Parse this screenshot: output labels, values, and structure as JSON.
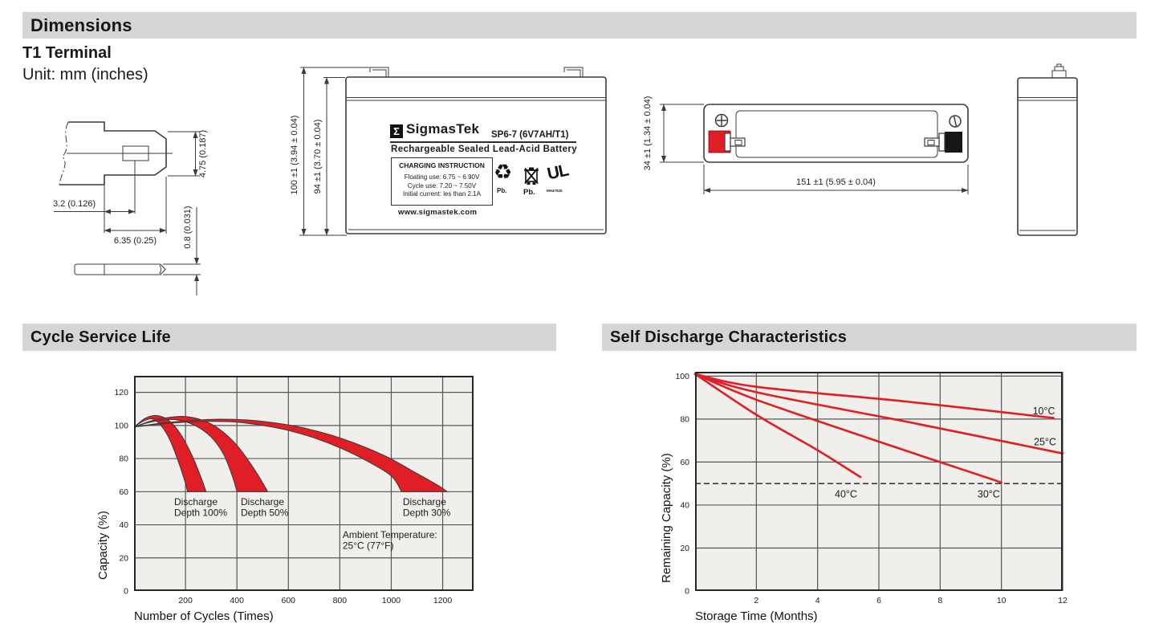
{
  "page": {
    "header": "Dimensions",
    "subheader": "T1 Terminal",
    "unit_note": "Unit: mm (inches)",
    "section_cycle": "Cycle Service Life",
    "section_self": "Self Discharge Characteristics"
  },
  "colors": {
    "red": "#e01e25",
    "plot_bg": "#f0efec",
    "grid": "#55565a",
    "border": "#262626",
    "header_bg": "#d5d5d5"
  },
  "icons": {
    "recycle": "♻",
    "ul": "UL"
  },
  "dims": {
    "terminal": {
      "height": "4.75 (0.187)",
      "offset": "3.2 (0.126)",
      "width": "6.35 (0.25)",
      "thickness": "0.8 (0.031)"
    },
    "front": {
      "overall_height": "100 ±1 (3.94 ± 0.04)",
      "case_height": "94 ±1 (3.70 ± 0.04)"
    },
    "top": {
      "depth": "34 ±1 (1.34 ± 0.04)",
      "width": "151 ±1 (5.95 ± 0.04)"
    }
  },
  "label": {
    "sigma": "Σ",
    "brand": "SigmasTek",
    "model": "SP6-7 (6V7AH/T1)",
    "type": "Rechargeable Sealed Lead-Acid Battery",
    "charging_title": "CHARGING INSTRUCTION",
    "charging": [
      "Floating use: 6.75 ~ 6.90V",
      "Cycle use: 7.20 ~ 7.50V",
      "Initial current: les than 2.1A"
    ],
    "website": "www.sigmastek.com",
    "pb_recycle": "Pb.",
    "pb_bin": "Pb.",
    "ul_code": "MH47929"
  },
  "chart_data": [
    {
      "type": "area",
      "title": "Cycle Service Life",
      "xlabel": "Number of Cycles (Times)",
      "ylabel": "Capacity (%)",
      "xlim": [
        0,
        1320
      ],
      "ylim": [
        0,
        130
      ],
      "xticks": [
        200,
        400,
        600,
        800,
        1000,
        1200
      ],
      "yticks": [
        0,
        20,
        40,
        60,
        80,
        100,
        120
      ],
      "grid": true,
      "bands": [
        {
          "name": "Discharge Depth 100%",
          "upper": [
            [
              0,
              99
            ],
            [
              45,
              104.5
            ],
            [
              90,
              106
            ],
            [
              135,
              103
            ],
            [
              180,
              95
            ],
            [
              225,
              82
            ],
            [
              262,
              68
            ],
            [
              280,
              60
            ]
          ],
          "lower": [
            [
              0,
              99
            ],
            [
              35,
              102.5
            ],
            [
              70,
              104
            ],
            [
              105,
              100
            ],
            [
              140,
              91
            ],
            [
              175,
              77
            ],
            [
              200,
              65
            ],
            [
              208,
              60
            ]
          ]
        },
        {
          "name": "Discharge Depth 50%",
          "upper": [
            [
              0,
              99
            ],
            [
              60,
              102.5
            ],
            [
              120,
              104.5
            ],
            [
              190,
              105.5
            ],
            [
              260,
              103.5
            ],
            [
              330,
              98
            ],
            [
              400,
              88
            ],
            [
              470,
              73
            ],
            [
              520,
              60
            ]
          ],
          "lower": [
            [
              0,
              99
            ],
            [
              50,
              101.5
            ],
            [
              100,
              103
            ],
            [
              160,
              103.5
            ],
            [
              230,
              100.5
            ],
            [
              300,
              93
            ],
            [
              350,
              82
            ],
            [
              385,
              68
            ],
            [
              400,
              60
            ]
          ]
        },
        {
          "name": "Discharge Depth 30%",
          "upper": [
            [
              0,
              99
            ],
            [
              110,
              101.5
            ],
            [
              220,
              103
            ],
            [
              330,
              103.8
            ],
            [
              440,
              103.3
            ],
            [
              550,
              101.5
            ],
            [
              660,
              98.5
            ],
            [
              770,
              94
            ],
            [
              880,
              88
            ],
            [
              990,
              80.5
            ],
            [
              1100,
              71
            ],
            [
              1180,
              64
            ],
            [
              1217,
              60
            ]
          ],
          "lower": [
            [
              0,
              99
            ],
            [
              100,
              100.8
            ],
            [
              200,
              102
            ],
            [
              300,
              102.5
            ],
            [
              400,
              102
            ],
            [
              500,
              100
            ],
            [
              600,
              97
            ],
            [
              700,
              92.5
            ],
            [
              800,
              86.5
            ],
            [
              900,
              79
            ],
            [
              1000,
              69.5
            ],
            [
              1040,
              60
            ]
          ]
        }
      ],
      "annotations": [
        {
          "lines": [
            "Discharge",
            "Depth 100%"
          ],
          "x": 156,
          "y": 52
        },
        {
          "lines": [
            "Discharge",
            "Depth 50%"
          ],
          "x": 415,
          "y": 52
        },
        {
          "lines": [
            "Discharge",
            "Depth 30%"
          ],
          "x": 1045,
          "y": 52
        },
        {
          "lines": [
            "Ambient Temperature:",
            "25°C (77°F)"
          ],
          "x": 811,
          "y": 32
        }
      ]
    },
    {
      "type": "line",
      "title": "Self Discharge Characteristics",
      "xlabel": "Storage Time (Months)",
      "ylabel": "Remaining Capacity (%)",
      "xlim": [
        0,
        12
      ],
      "ylim": [
        0,
        102
      ],
      "xticks": [
        2,
        4,
        6,
        8,
        10,
        12
      ],
      "yticks": [
        0,
        20,
        40,
        60,
        80,
        100
      ],
      "grid": true,
      "dashed_line_y": 50,
      "series": [
        {
          "name": "10°C",
          "points": [
            [
              0,
              101
            ],
            [
              2,
              95
            ],
            [
              7,
              88
            ],
            [
              11.7,
              80.5
            ]
          ],
          "label_x": 11.02,
          "label_y": 82.2
        },
        {
          "name": "25°C",
          "points": [
            [
              0,
              101
            ],
            [
              2,
              92.5
            ],
            [
              7,
              78.5
            ],
            [
              12,
              64
            ]
          ],
          "label_x": 11.06,
          "label_y": 67.8
        },
        {
          "name": "30°C",
          "points": [
            [
              0,
              101
            ],
            [
              2,
              89
            ],
            [
              6,
              69.5
            ],
            [
              10,
              50.5
            ]
          ],
          "label_x": 9.22,
          "label_y": 43.5
        },
        {
          "name": "40°C",
          "points": [
            [
              0,
              101
            ],
            [
              2,
              82
            ],
            [
              4,
              65.5
            ],
            [
              5.4,
              53
            ]
          ],
          "label_x": 4.56,
          "label_y": 43.5
        }
      ]
    }
  ]
}
